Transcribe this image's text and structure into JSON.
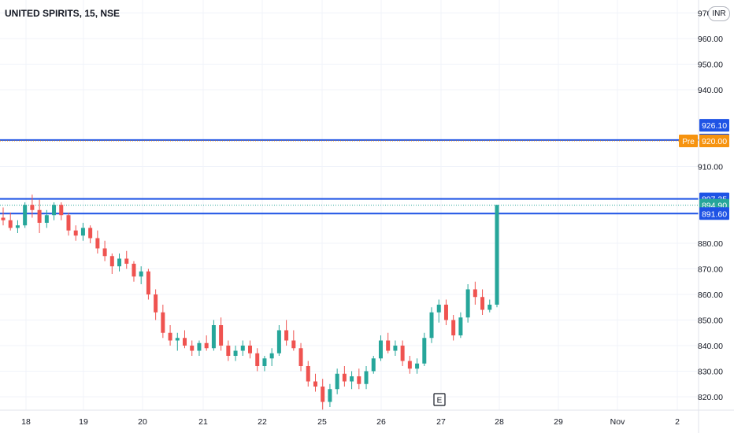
{
  "header": {
    "title": "UNITED SPIRITS, 15, NSE",
    "currency_badge": "INR"
  },
  "earnings_marker": "E",
  "colors": {
    "up": "#26a69a",
    "down": "#ef5350",
    "level": "#1e53e5",
    "current": "#26a69a",
    "pre": "#f6930f",
    "grid": "#f0f3fa",
    "axis_text": "#131722"
  },
  "chart_data": {
    "type": "candlestick",
    "title": "UNITED SPIRITS, 15, NSE",
    "x_ticks": [
      "18",
      "19",
      "20",
      "21",
      "22",
      "25",
      "26",
      "27",
      "28",
      "29",
      "Nov",
      "2"
    ],
    "y_ticks": [
      "970.00",
      "960.00",
      "950.00",
      "940.00",
      "910.00",
      "880.00",
      "870.00",
      "860.00",
      "850.00",
      "840.00",
      "830.00",
      "820.00"
    ],
    "y_range": [
      816,
      972
    ],
    "grid": true,
    "price_levels": [
      {
        "label": "926.10",
        "value": 926.1,
        "kind": "axis-label"
      },
      {
        "label": "920.35",
        "value": 920.35,
        "kind": "horizontal-line"
      },
      {
        "label": "920.00",
        "value": 920.0,
        "kind": "pre-market",
        "tag": "Pre"
      },
      {
        "label": "897.35",
        "value": 897.35,
        "kind": "horizontal-line"
      },
      {
        "label": "894.90",
        "value": 894.9,
        "kind": "current-price"
      },
      {
        "label": "891.60",
        "value": 891.6,
        "kind": "horizontal-line"
      }
    ],
    "candles": [
      [
        890,
        894,
        887,
        889
      ],
      [
        889,
        892,
        885,
        886
      ],
      [
        886,
        889,
        884,
        887
      ],
      [
        887,
        896,
        886,
        895
      ],
      [
        895,
        899,
        890,
        893
      ],
      [
        893,
        897,
        884,
        888
      ],
      [
        888,
        893,
        886,
        891
      ],
      [
        891,
        896,
        889,
        895
      ],
      [
        895,
        896,
        889,
        891
      ],
      [
        891,
        892,
        883,
        885
      ],
      [
        885,
        887,
        881,
        883
      ],
      [
        883,
        888,
        881,
        886
      ],
      [
        886,
        887,
        880,
        882
      ],
      [
        882,
        885,
        876,
        878
      ],
      [
        878,
        881,
        873,
        875
      ],
      [
        875,
        876,
        868,
        871
      ],
      [
        871,
        876,
        869,
        874
      ],
      [
        874,
        877,
        870,
        872
      ],
      [
        872,
        873,
        865,
        867
      ],
      [
        867,
        871,
        864,
        869
      ],
      [
        869,
        870,
        858,
        860
      ],
      [
        860,
        862,
        850,
        853
      ],
      [
        853,
        856,
        843,
        845
      ],
      [
        845,
        848,
        840,
        842
      ],
      [
        842,
        845,
        838,
        843
      ],
      [
        843,
        846,
        839,
        840
      ],
      [
        840,
        842,
        836,
        838
      ],
      [
        838,
        842,
        836,
        841
      ],
      [
        841,
        844,
        838,
        839
      ],
      [
        839,
        850,
        838,
        848
      ],
      [
        848,
        851,
        838,
        840
      ],
      [
        840,
        842,
        834,
        836
      ],
      [
        836,
        840,
        834,
        838
      ],
      [
        838,
        842,
        836,
        840
      ],
      [
        840,
        842,
        835,
        837
      ],
      [
        837,
        839,
        830,
        832
      ],
      [
        832,
        836,
        830,
        835
      ],
      [
        835,
        839,
        832,
        837
      ],
      [
        837,
        848,
        836,
        846
      ],
      [
        846,
        850,
        840,
        842
      ],
      [
        842,
        846,
        838,
        839
      ],
      [
        839,
        841,
        830,
        832
      ],
      [
        832,
        834,
        824,
        826
      ],
      [
        826,
        829,
        822,
        824
      ],
      [
        824,
        827,
        815,
        818
      ],
      [
        818,
        825,
        816,
        823
      ],
      [
        823,
        831,
        821,
        829
      ],
      [
        829,
        832,
        824,
        826
      ],
      [
        826,
        830,
        823,
        828
      ],
      [
        828,
        831,
        823,
        825
      ],
      [
        825,
        832,
        823,
        830
      ],
      [
        830,
        836,
        829,
        835
      ],
      [
        835,
        844,
        834,
        842
      ],
      [
        842,
        845,
        837,
        838
      ],
      [
        838,
        842,
        836,
        840
      ],
      [
        840,
        842,
        832,
        834
      ],
      [
        834,
        836,
        829,
        831
      ],
      [
        831,
        835,
        829,
        833
      ],
      [
        833,
        845,
        832,
        843
      ],
      [
        843,
        855,
        841,
        853
      ],
      [
        853,
        858,
        849,
        856
      ],
      [
        856,
        858,
        848,
        850
      ],
      [
        850,
        852,
        842,
        844
      ],
      [
        844,
        853,
        843,
        851
      ],
      [
        851,
        864,
        849,
        862
      ],
      [
        862,
        865,
        856,
        859
      ],
      [
        859,
        862,
        852,
        854
      ],
      [
        854,
        858,
        853,
        856
      ],
      [
        856,
        894,
        855,
        895
      ]
    ]
  }
}
